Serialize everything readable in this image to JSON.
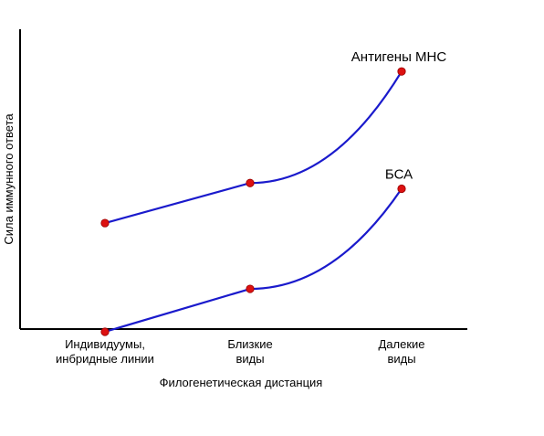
{
  "chart_data": {
    "type": "line",
    "title": "",
    "xlabel": "Филогенетическая дистанция",
    "ylabel": "Сила иммунного ответа",
    "categories": [
      [
        "Индивидуумы,",
        "инбридные линии"
      ],
      [
        "Близкие",
        "виды"
      ],
      [
        "Далекие",
        "виды"
      ]
    ],
    "series": [
      {
        "name": "Антигены МНС",
        "values": [
          0.38,
          0.52,
          0.91
        ]
      },
      {
        "name": "БСА",
        "values": [
          0.0,
          0.15,
          0.5
        ]
      }
    ],
    "ylim": [
      0,
      1
    ],
    "grid": false,
    "legend": "none",
    "colors": {
      "line": "#1a1acc",
      "marker": "#dd1111",
      "marker_edge": "#990000",
      "axis": "#000000"
    }
  }
}
